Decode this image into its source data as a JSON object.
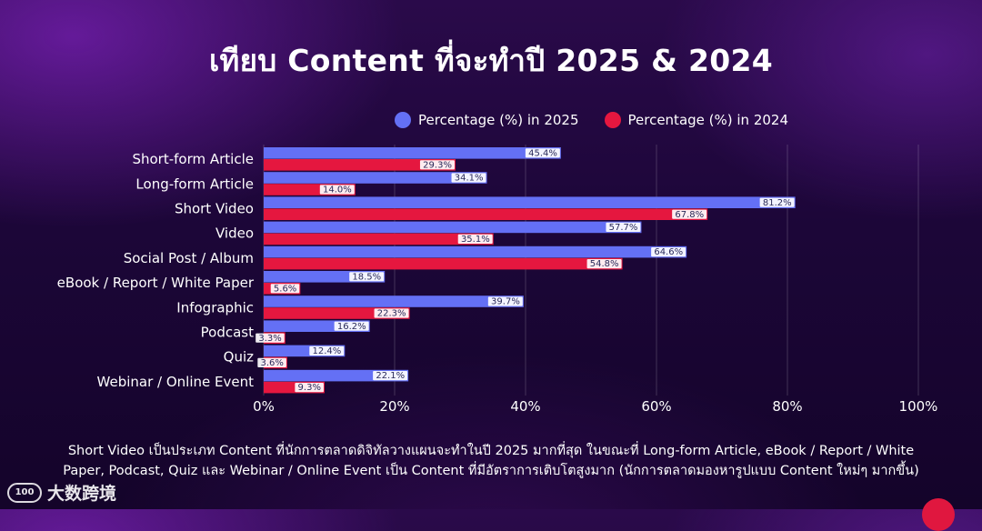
{
  "chart_data": {
    "type": "bar",
    "orientation": "horizontal",
    "title": "เทียบ Content ที่จะทำปี 2025 & 2024",
    "categories": [
      "Short-form Article",
      "Long-form Article",
      "Short Video",
      "Video",
      "Social Post / Album",
      "eBook / Report / White Paper",
      "Infographic",
      "Podcast",
      "Quiz",
      "Webinar / Online Event"
    ],
    "series": [
      {
        "name": "Percentage (%) in 2025",
        "color": "#6470f5",
        "values": [
          45.4,
          34.1,
          81.2,
          57.7,
          64.6,
          18.5,
          39.7,
          16.2,
          12.4,
          22.1
        ],
        "labels": [
          "45.4%",
          "34.1%",
          "81.2%",
          "57.7%",
          "64.6%",
          "18.5%",
          "39.7%",
          "16.2%",
          "12.4%",
          "22.1%"
        ]
      },
      {
        "name": "Percentage (%) in 2024",
        "color": "#e5173f",
        "values": [
          29.3,
          14.0,
          67.8,
          35.1,
          54.8,
          5.6,
          22.3,
          3.3,
          3.6,
          9.3
        ],
        "labels": [
          "29.3%",
          "14.0%",
          "67.8%",
          "35.1%",
          "54.8%",
          "5.6%",
          "22.3%",
          "3.3%",
          "3.6%",
          "9.3%"
        ]
      }
    ],
    "xlim": [
      0,
      100
    ],
    "xticks": [
      0,
      20,
      40,
      60,
      80,
      100
    ],
    "xtick_labels": [
      "0%",
      "20%",
      "40%",
      "60%",
      "80%",
      "100%"
    ],
    "grid": true,
    "legend_position": "top-center",
    "xlabel": "",
    "ylabel": ""
  },
  "footnote": {
    "line1": "Short Video เป็นประเภท Content ที่นักการตลาดดิจิทัลวางแผนจะทำในปี 2025 มากที่สุด ในขณะที่ Long-form Article, eBook / Report / White",
    "line2": "Paper, Podcast, Quiz และ Webinar / Online Event เป็น Content ที่มีอัตราการเติบโตสูงมาก (นักการตลาดมองหารูปแบบ Content ใหม่ๆ มากขึ้น)"
  },
  "brand": {
    "icon_text": "100",
    "name": "大数跨境"
  }
}
